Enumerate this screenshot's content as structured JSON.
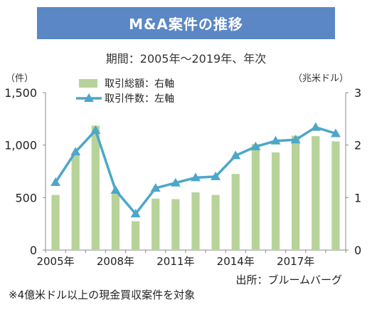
{
  "header": {
    "title": "M&A案件の推移",
    "subtitle": "期間：2005年～2019年、年次"
  },
  "chart_data": {
    "type": "bar+line",
    "categories": [
      "2005年",
      "2006年",
      "2007年",
      "2008年",
      "2009年",
      "2010年",
      "2011年",
      "2012年",
      "2013年",
      "2014年",
      "2015年",
      "2016年",
      "2017年",
      "2018年",
      "2019年"
    ],
    "x_tick_labels": [
      "2005年",
      "2008年",
      "2011年",
      "2014年",
      "2017年"
    ],
    "series": [
      {
        "name": "取引総額：右軸",
        "type": "bar",
        "axis": "right",
        "color": "#b8d39a",
        "values": [
          1.05,
          1.8,
          2.37,
          1.07,
          0.55,
          0.98,
          0.97,
          1.1,
          1.05,
          1.45,
          2.02,
          1.86,
          2.18,
          2.17,
          2.07
        ]
      },
      {
        "name": "取引件数：左軸",
        "type": "line",
        "axis": "left",
        "color": "#4ca7c9",
        "values": [
          645,
          935,
          1140,
          570,
          345,
          590,
          640,
          690,
          700,
          900,
          985,
          1040,
          1050,
          1170,
          1110
        ]
      }
    ],
    "left_axis": {
      "unit": "（件）",
      "ticks": [
        "0",
        "500",
        "1,000",
        "1,500"
      ],
      "range": [
        0,
        1500
      ]
    },
    "right_axis": {
      "unit": "（兆米ドル）",
      "ticks": [
        "0",
        "1",
        "2",
        "3"
      ],
      "range": [
        0,
        3
      ]
    },
    "source": "出所：ブルームバーグ",
    "legend_position": "top-left"
  },
  "footer": {
    "note": "※4億米ドル以上の現金買収案件を対象"
  }
}
